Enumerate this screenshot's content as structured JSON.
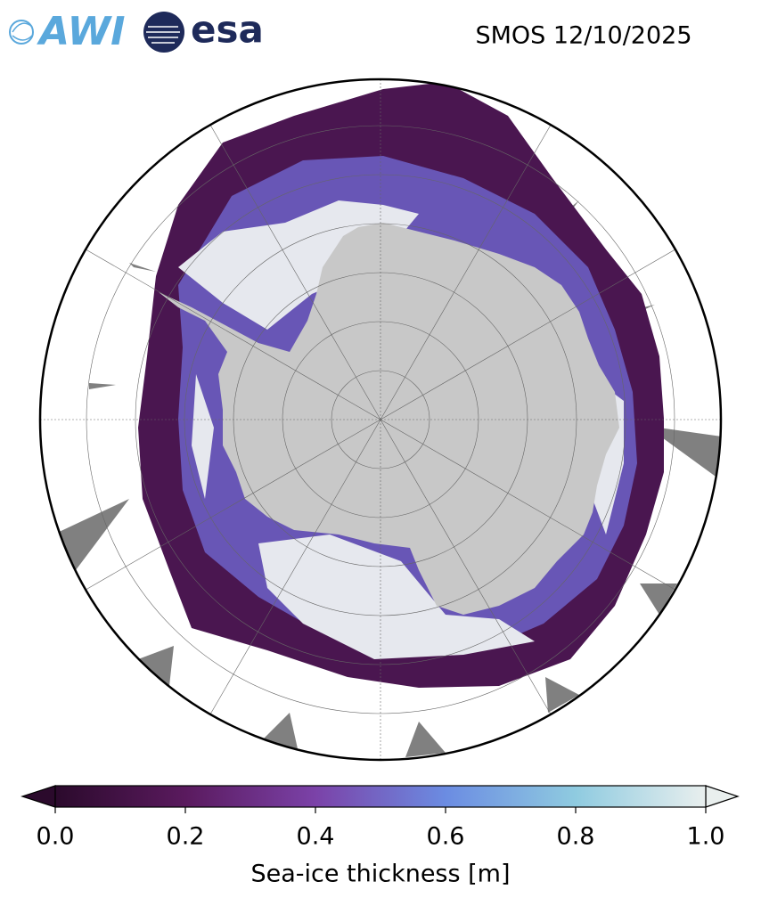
{
  "logos": [
    "AWI",
    "esa"
  ],
  "title": "SMOS 12/10/2025",
  "colorbar": {
    "label": "Sea-ice thickness [m]",
    "range": [
      0,
      1
    ],
    "ticks": [
      {
        "value": 0,
        "label": "0.0"
      },
      {
        "value": 0.2,
        "label": "0.2"
      },
      {
        "value": 0.4,
        "label": "0.4"
      },
      {
        "value": 0.6,
        "label": "0.6"
      },
      {
        "value": 0.8,
        "label": "0.8"
      },
      {
        "value": 1,
        "label": "1.0"
      }
    ],
    "colors": [
      "#2b0a2c",
      "#5a1a5e",
      "#7b42a8",
      "#6b8ce2",
      "#8fcbe0",
      "#e9efee"
    ],
    "extend": "both"
  }
}
